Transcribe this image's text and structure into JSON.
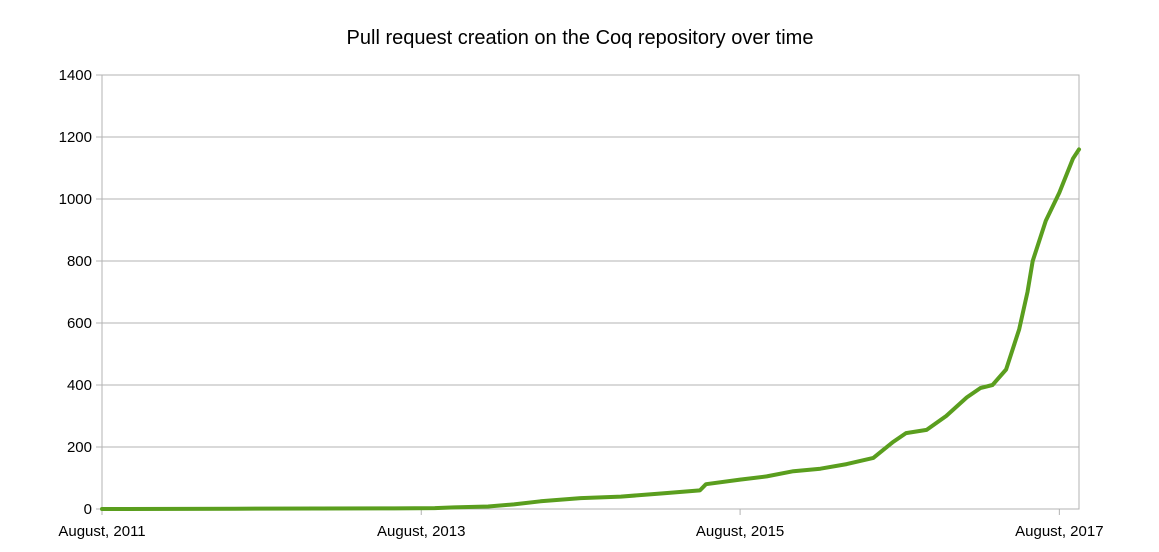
{
  "chart_data": {
    "type": "line",
    "title": "Pull request creation on the Coq repository over time",
    "xlabel": "",
    "ylabel": "",
    "ylim": [
      0,
      1400
    ],
    "yticks": [
      0,
      200,
      400,
      600,
      800,
      1000,
      1200,
      1400
    ],
    "xlim": [
      "2011-08-01",
      "2017-09-15"
    ],
    "xticks": [
      {
        "label": "August, 2011",
        "date": "2011-08-01"
      },
      {
        "label": "August, 2013",
        "date": "2013-08-01"
      },
      {
        "label": "August, 2015",
        "date": "2015-08-01"
      },
      {
        "label": "August, 2017",
        "date": "2017-08-01"
      }
    ],
    "grid": true,
    "legend": "none",
    "series": [
      {
        "color": "#5a9e1e",
        "points": [
          {
            "x": "2011-08-01",
            "y": 0
          },
          {
            "x": "2012-06-01",
            "y": 1
          },
          {
            "x": "2013-06-01",
            "y": 2
          },
          {
            "x": "2013-09-01",
            "y": 3
          },
          {
            "x": "2013-10-15",
            "y": 5
          },
          {
            "x": "2014-01-01",
            "y": 8
          },
          {
            "x": "2014-03-01",
            "y": 15
          },
          {
            "x": "2014-05-01",
            "y": 25
          },
          {
            "x": "2014-08-01",
            "y": 35
          },
          {
            "x": "2014-11-01",
            "y": 40
          },
          {
            "x": "2015-02-01",
            "y": 50
          },
          {
            "x": "2015-05-01",
            "y": 60
          },
          {
            "x": "2015-05-15",
            "y": 80
          },
          {
            "x": "2015-08-01",
            "y": 95
          },
          {
            "x": "2015-10-01",
            "y": 105
          },
          {
            "x": "2015-12-01",
            "y": 122
          },
          {
            "x": "2016-02-01",
            "y": 130
          },
          {
            "x": "2016-04-01",
            "y": 145
          },
          {
            "x": "2016-06-01",
            "y": 165
          },
          {
            "x": "2016-07-15",
            "y": 215
          },
          {
            "x": "2016-08-15",
            "y": 245
          },
          {
            "x": "2016-10-01",
            "y": 255
          },
          {
            "x": "2016-11-15",
            "y": 300
          },
          {
            "x": "2017-01-01",
            "y": 360
          },
          {
            "x": "2017-02-01",
            "y": 390
          },
          {
            "x": "2017-03-01",
            "y": 400
          },
          {
            "x": "2017-04-01",
            "y": 450
          },
          {
            "x": "2017-05-01",
            "y": 580
          },
          {
            "x": "2017-05-20",
            "y": 700
          },
          {
            "x": "2017-06-01",
            "y": 800
          },
          {
            "x": "2017-07-01",
            "y": 930
          },
          {
            "x": "2017-08-01",
            "y": 1020
          },
          {
            "x": "2017-09-01",
            "y": 1130
          },
          {
            "x": "2017-09-15",
            "y": 1160
          }
        ]
      }
    ]
  }
}
